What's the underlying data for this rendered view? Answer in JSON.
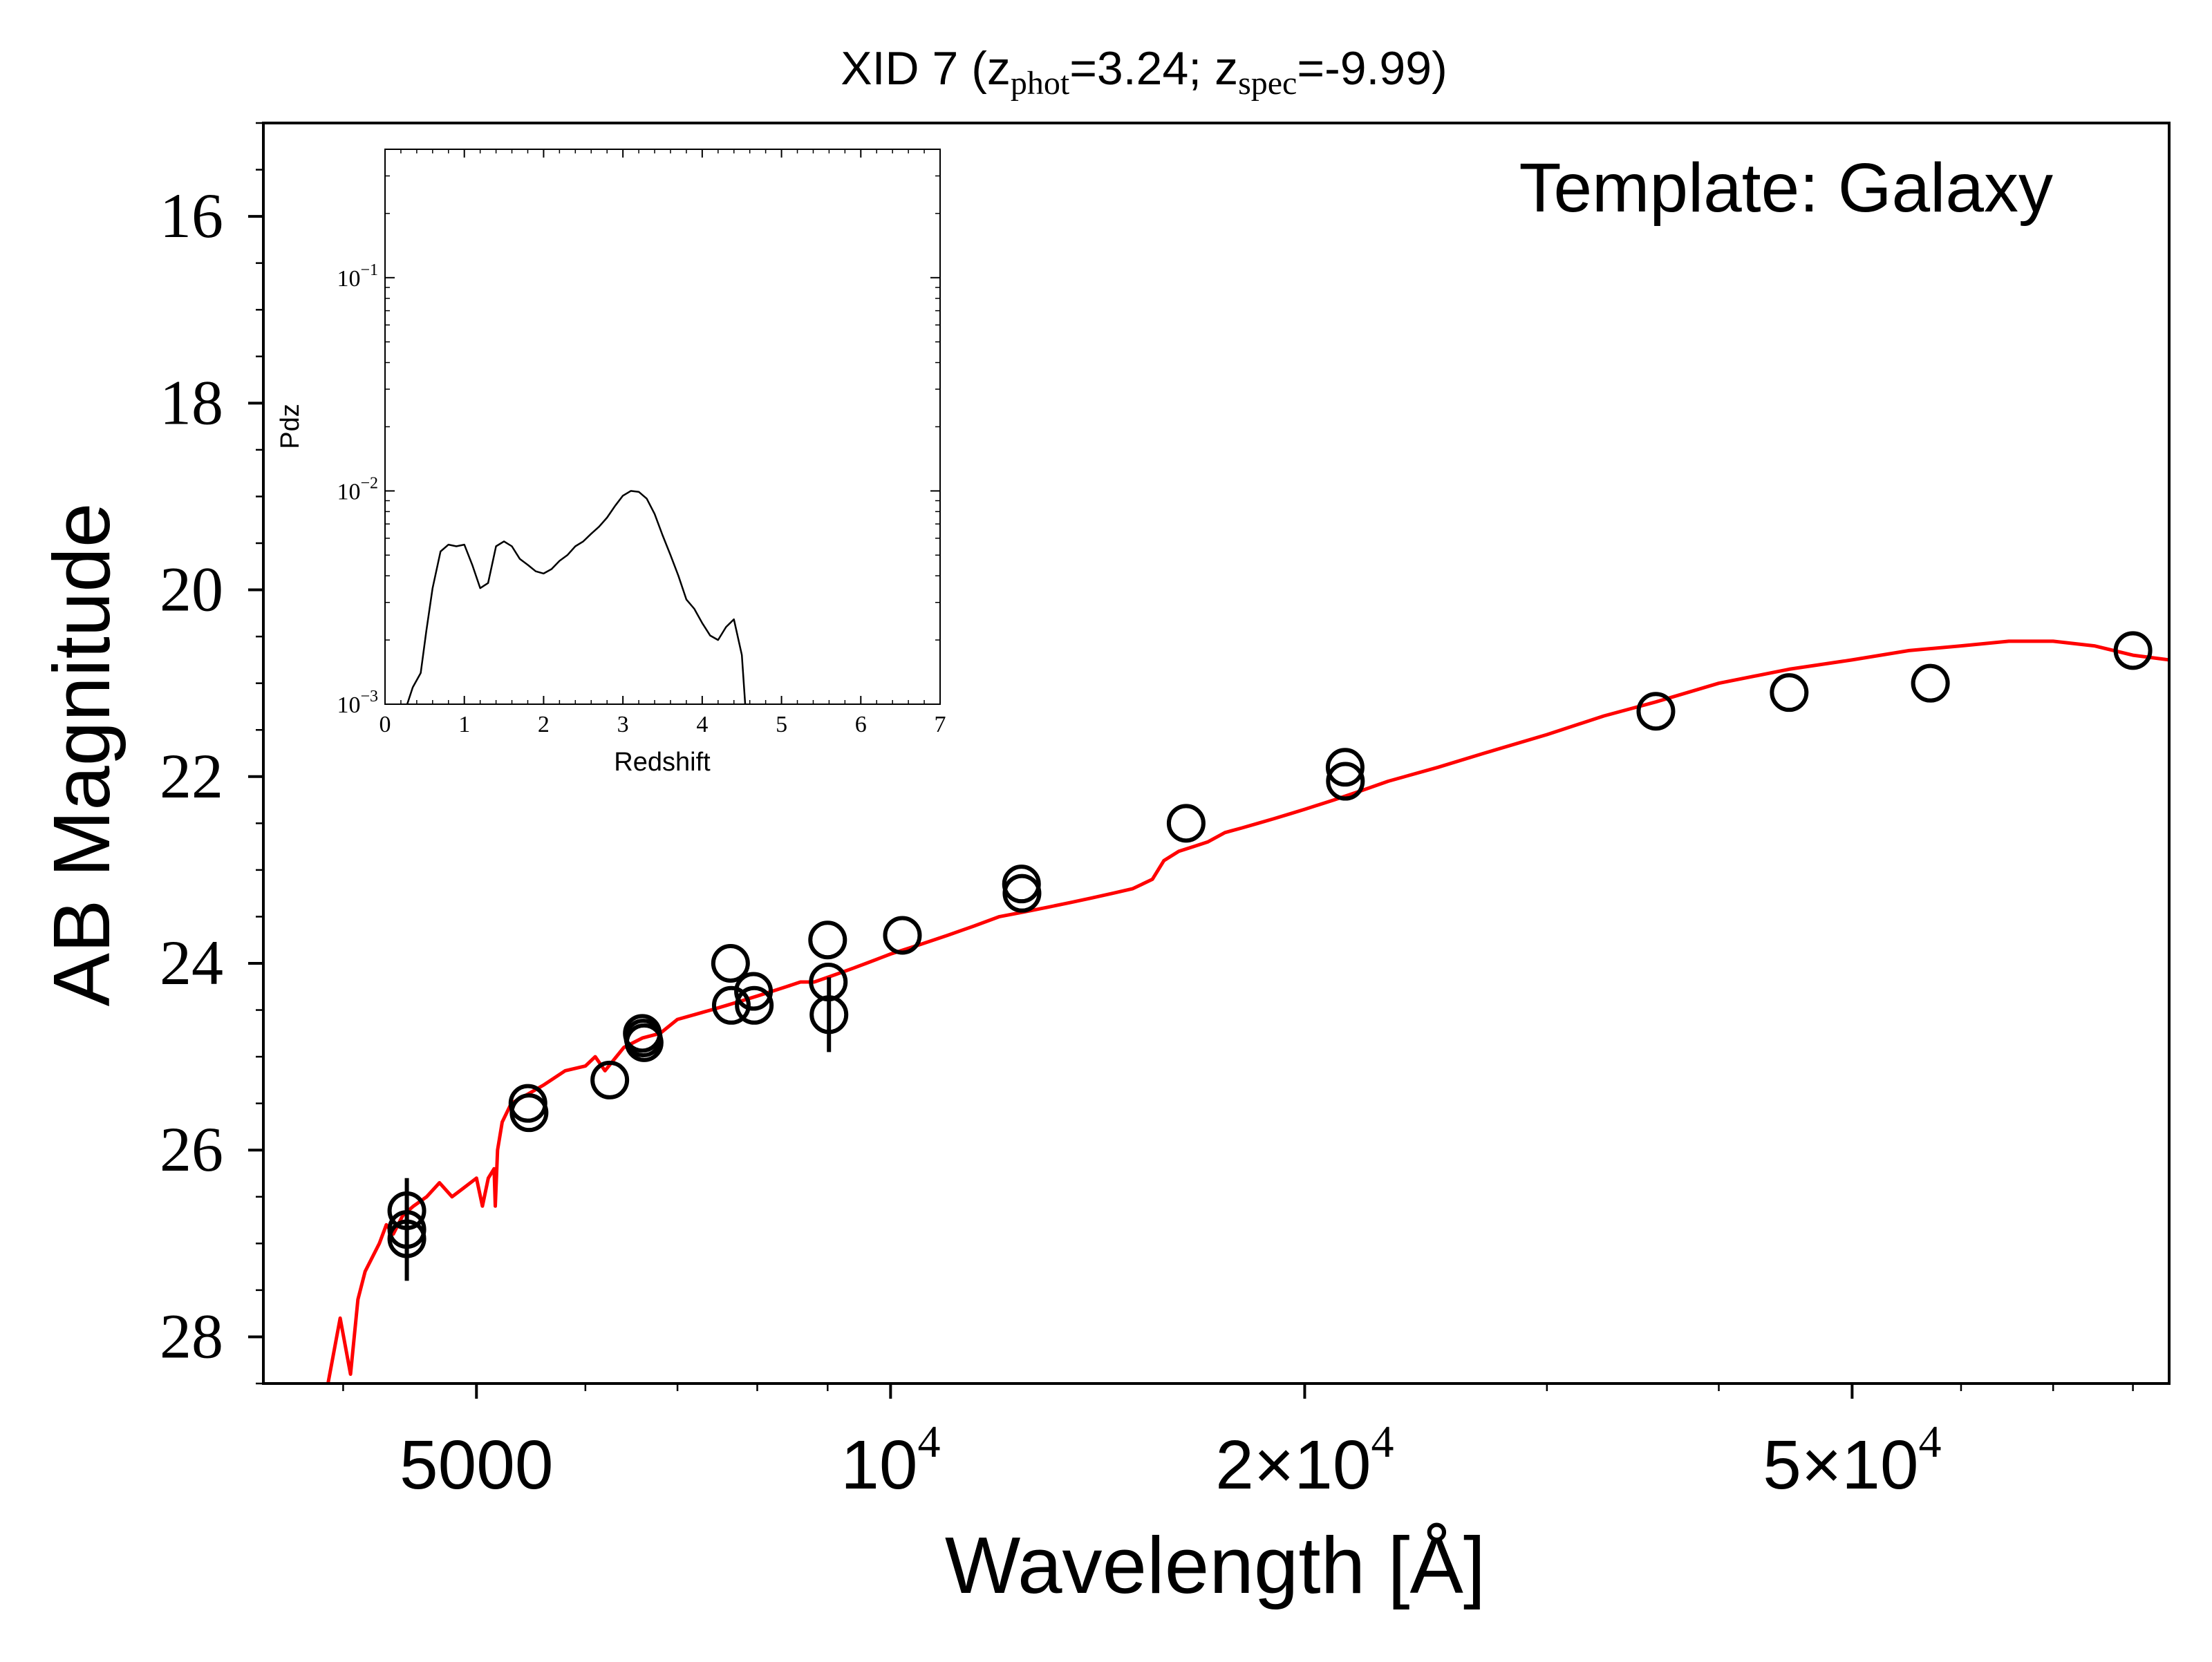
{
  "chart_data": {
    "type": "scatter",
    "title": {
      "prefix": "XID 7 (z",
      "phot_sub": "phot",
      "phot_val": "=3.24; z",
      "spec_sub": "spec",
      "spec_val": "=-9.99)"
    },
    "annotation": "Template: Galaxy",
    "xlabel": "Wavelength [Å]",
    "ylabel": "AB Magnitude",
    "x_scale": "log",
    "xlim": [
      3500,
      85000
    ],
    "ylim": [
      28.5,
      15
    ],
    "y_inverted": true,
    "xtick_labels": [
      {
        "x": 5000,
        "base": "5000",
        "exp": ""
      },
      {
        "x": 10000,
        "base": "10",
        "exp": "4"
      },
      {
        "x": 20000,
        "base": "2×10",
        "exp": "4"
      },
      {
        "x": 50000,
        "base": "5×10",
        "exp": "4"
      }
    ],
    "ytick_labels": [
      "16",
      "18",
      "20",
      "22",
      "24",
      "26",
      "28"
    ],
    "grid": false,
    "colors": {
      "model": "#ff0000",
      "points": "#000000"
    },
    "series": [
      {
        "type": "scatter",
        "points": [
          {
            "x": 4450,
            "y": 26.65,
            "yerr": 0.35
          },
          {
            "x": 4450,
            "y": 26.85,
            "yerr": 0.25
          },
          {
            "x": 4450,
            "y": 26.95,
            "yerr": 0.45
          },
          {
            "x": 5450,
            "y": 25.5
          },
          {
            "x": 5460,
            "y": 25.6
          },
          {
            "x": 6250,
            "y": 25.25
          },
          {
            "x": 6600,
            "y": 24.75
          },
          {
            "x": 6610,
            "y": 24.8
          },
          {
            "x": 6620,
            "y": 24.85
          },
          {
            "x": 7650,
            "y": 24.0
          },
          {
            "x": 7660,
            "y": 24.45
          },
          {
            "x": 7950,
            "y": 24.3
          },
          {
            "x": 7960,
            "y": 24.45
          },
          {
            "x": 9000,
            "y": 23.75
          },
          {
            "x": 9010,
            "y": 24.2
          },
          {
            "x": 9020,
            "y": 24.55,
            "yerr": 0.4
          },
          {
            "x": 10200,
            "y": 23.7
          },
          {
            "x": 12450,
            "y": 23.15
          },
          {
            "x": 12460,
            "y": 23.25
          },
          {
            "x": 16400,
            "y": 22.5
          },
          {
            "x": 21400,
            "y": 21.9
          },
          {
            "x": 21410,
            "y": 22.05
          },
          {
            "x": 36000,
            "y": 21.3
          },
          {
            "x": 45000,
            "y": 21.1
          },
          {
            "x": 57000,
            "y": 21.0
          },
          {
            "x": 80000,
            "y": 20.65
          }
        ]
      },
      {
        "type": "line",
        "x": [
          3900,
          3980,
          4050,
          4100,
          4150,
          4250,
          4300,
          4350,
          4420,
          4500,
          4600,
          4700,
          4800,
          4900,
          5000,
          5050,
          5100,
          5150,
          5160,
          5180,
          5220,
          5300,
          5450,
          5600,
          5800,
          6000,
          6100,
          6200,
          6400,
          6600,
          6800,
          7000,
          7200,
          7400,
          7600,
          7800,
          8000,
          8200,
          8400,
          8600,
          8800,
          9000,
          9200,
          9400,
          9600,
          9800,
          10000,
          10500,
          11000,
          11500,
          12000,
          12500,
          13000,
          13500,
          14000,
          14500,
          15000,
          15500,
          15800,
          16200,
          16600,
          17000,
          17500,
          18000,
          18500,
          19000,
          19500,
          20000,
          21000,
          22000,
          23000,
          25000,
          27000,
          30000,
          33000,
          36000,
          40000,
          45000,
          50000,
          55000,
          60000,
          65000,
          70000,
          75000,
          80000,
          85000
        ],
        "y": [
          28.5,
          27.8,
          28.4,
          27.6,
          27.3,
          27.0,
          26.8,
          26.9,
          26.7,
          26.6,
          26.5,
          26.35,
          26.5,
          26.4,
          26.3,
          26.6,
          26.3,
          26.2,
          26.6,
          26.0,
          25.7,
          25.5,
          25.4,
          25.3,
          25.15,
          25.1,
          25.0,
          25.15,
          24.9,
          24.8,
          24.75,
          24.6,
          24.55,
          24.5,
          24.45,
          24.4,
          24.35,
          24.3,
          24.25,
          24.2,
          24.2,
          24.15,
          24.1,
          24.05,
          24.0,
          23.95,
          23.9,
          23.8,
          23.7,
          23.6,
          23.5,
          23.45,
          23.4,
          23.35,
          23.3,
          23.25,
          23.2,
          23.1,
          22.9,
          22.8,
          22.75,
          22.7,
          22.6,
          22.55,
          22.5,
          22.45,
          22.4,
          22.35,
          22.25,
          22.15,
          22.05,
          21.9,
          21.75,
          21.55,
          21.35,
          21.2,
          21.0,
          20.85,
          20.75,
          20.65,
          20.6,
          20.55,
          20.55,
          20.6,
          20.7,
          20.75
        ]
      }
    ]
  },
  "inset_data": {
    "type": "line",
    "xlabel": "Redshift",
    "ylabel": "Pdz",
    "y_scale": "log",
    "xlim": [
      0,
      7
    ],
    "ylim": [
      0.001,
      0.4
    ],
    "xtick_labels": [
      "0",
      "1",
      "2",
      "3",
      "4",
      "5",
      "6",
      "7"
    ],
    "ytick_labels": [
      {
        "v": 0.1,
        "base": "10",
        "exp": "−1"
      },
      {
        "v": 0.01,
        "base": "10",
        "exp": "−2"
      },
      {
        "v": 0.001,
        "base": "10",
        "exp": "−3"
      }
    ],
    "x": [
      0.28,
      0.35,
      0.45,
      0.52,
      0.6,
      0.7,
      0.8,
      0.9,
      1.0,
      1.1,
      1.2,
      1.3,
      1.4,
      1.5,
      1.6,
      1.7,
      1.8,
      1.9,
      2.0,
      2.1,
      2.2,
      2.3,
      2.4,
      2.5,
      2.6,
      2.7,
      2.8,
      2.9,
      3.0,
      3.1,
      3.2,
      3.3,
      3.4,
      3.5,
      3.6,
      3.7,
      3.8,
      3.9,
      4.0,
      4.1,
      4.2,
      4.3,
      4.4,
      4.5,
      4.55
    ],
    "y": [
      0.001,
      0.0012,
      0.0014,
      0.0022,
      0.0035,
      0.0052,
      0.0056,
      0.0055,
      0.0056,
      0.0045,
      0.0035,
      0.0037,
      0.0055,
      0.0058,
      0.0055,
      0.0048,
      0.0045,
      0.0042,
      0.0041,
      0.0043,
      0.0047,
      0.005,
      0.0055,
      0.0058,
      0.0063,
      0.0068,
      0.0075,
      0.0085,
      0.0095,
      0.01,
      0.0099,
      0.0092,
      0.0078,
      0.0062,
      0.005,
      0.004,
      0.0031,
      0.0028,
      0.0024,
      0.0021,
      0.002,
      0.0023,
      0.0025,
      0.0017,
      0.0009
    ]
  }
}
